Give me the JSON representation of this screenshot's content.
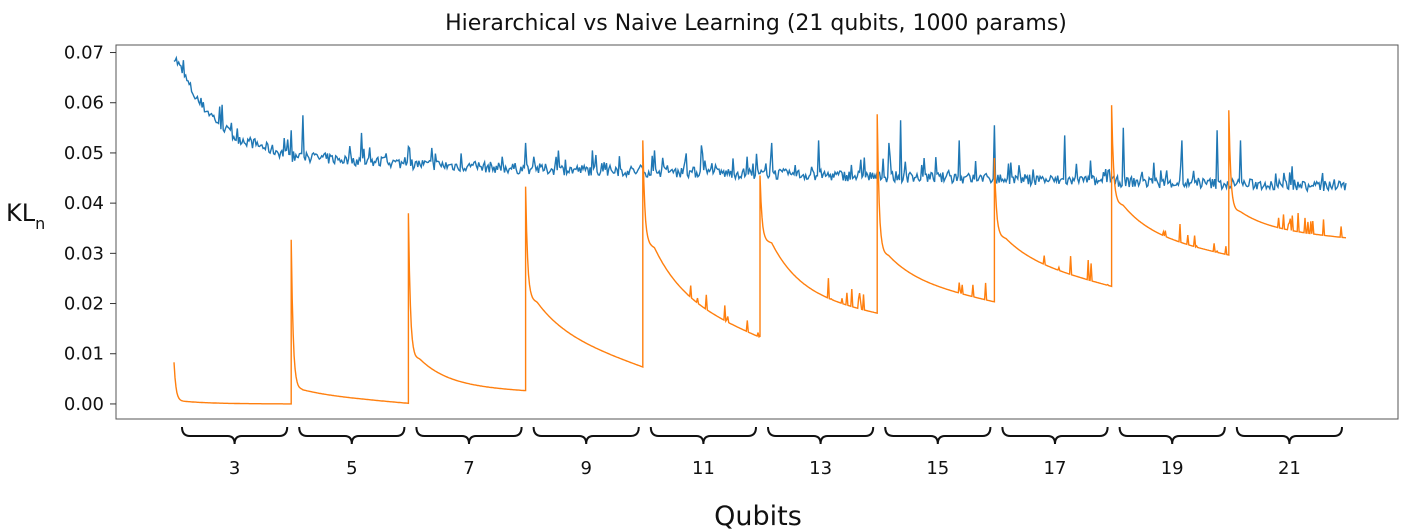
{
  "chart_data": {
    "type": "line",
    "title": "Hierarchical vs Naive Learning (21 qubits, 1000 params)",
    "xlabel": "Qubits",
    "ylabel": "KL",
    "ylabel_sub": "n",
    "ylim": [
      -0.003,
      0.0715
    ],
    "yticks": [
      "0.00",
      "0.01",
      "0.02",
      "0.03",
      "0.04",
      "0.05",
      "0.06",
      "0.07"
    ],
    "ytick_values": [
      0.0,
      0.01,
      0.02,
      0.03,
      0.04,
      0.05,
      0.06,
      0.07
    ],
    "xlim": [
      0,
      10000
    ],
    "x_groups": [
      "3",
      "5",
      "7",
      "9",
      "11",
      "13",
      "15",
      "17",
      "19",
      "21"
    ],
    "grid": false,
    "series": [
      {
        "color": "#1f77b4",
        "trend": [
          [
            0,
            0.069
          ],
          [
            200,
            0.06
          ],
          [
            500,
            0.053
          ],
          [
            1000,
            0.049
          ],
          [
            2000,
            0.0475
          ],
          [
            3000,
            0.0465
          ],
          [
            5000,
            0.0455
          ],
          [
            7000,
            0.0445
          ],
          [
            10000,
            0.043
          ]
        ],
        "spikes": [
          [
            1000,
            0.0545
          ],
          [
            1100,
            0.0575
          ],
          [
            1600,
            0.054
          ],
          [
            2200,
            0.051
          ],
          [
            3000,
            0.052
          ],
          [
            4100,
            0.0505
          ],
          [
            4500,
            0.0515
          ],
          [
            5100,
            0.052
          ],
          [
            5500,
            0.0525
          ],
          [
            6100,
            0.052
          ],
          [
            6200,
            0.0565
          ],
          [
            6700,
            0.0525
          ],
          [
            7000,
            0.0555
          ],
          [
            7600,
            0.0535
          ],
          [
            8100,
            0.055
          ],
          [
            8600,
            0.0525
          ],
          [
            8900,
            0.0545
          ],
          [
            9100,
            0.0525
          ],
          [
            9800,
            0.046
          ]
        ]
      },
      {
        "color": "#ff7f0e",
        "segments": [
          {
            "x": [
              0,
              1000
            ],
            "peak": 0.0083,
            "knee": 0.0005,
            "floor": 0.0,
            "end": 0.0
          },
          {
            "x": [
              1000,
              2000
            ],
            "peak": 0.0327,
            "knee": 0.003,
            "floor": 0.002,
            "end": 0.0001
          },
          {
            "x": [
              2000,
              3000
            ],
            "peak": 0.038,
            "knee": 0.009,
            "floor": 0.0035,
            "end": 0.0025
          },
          {
            "x": [
              3000,
              4000
            ],
            "peak": 0.0433,
            "knee": 0.021,
            "floor": 0.015,
            "end": 0.0072
          },
          {
            "x": [
              4000,
              5000
            ],
            "peak": 0.0525,
            "knee": 0.032,
            "floor": 0.022,
            "end": 0.013
          },
          {
            "x": [
              5000,
              6000
            ],
            "peak": 0.0455,
            "knee": 0.0325,
            "floor": 0.022,
            "end": 0.0178
          },
          {
            "x": [
              6000,
              7000
            ],
            "peak": 0.0577,
            "knee": 0.03,
            "floor": 0.025,
            "end": 0.0202
          },
          {
            "x": [
              7000,
              8000
            ],
            "peak": 0.049,
            "knee": 0.0335,
            "floor": 0.029,
            "end": 0.0233
          },
          {
            "x": [
              8000,
              9000
            ],
            "peak": 0.0595,
            "knee": 0.04,
            "floor": 0.034,
            "end": 0.0295
          },
          {
            "x": [
              9000,
              10000
            ],
            "peak": 0.0585,
            "knee": 0.0385,
            "floor": 0.035,
            "end": 0.033
          }
        ]
      }
    ]
  }
}
